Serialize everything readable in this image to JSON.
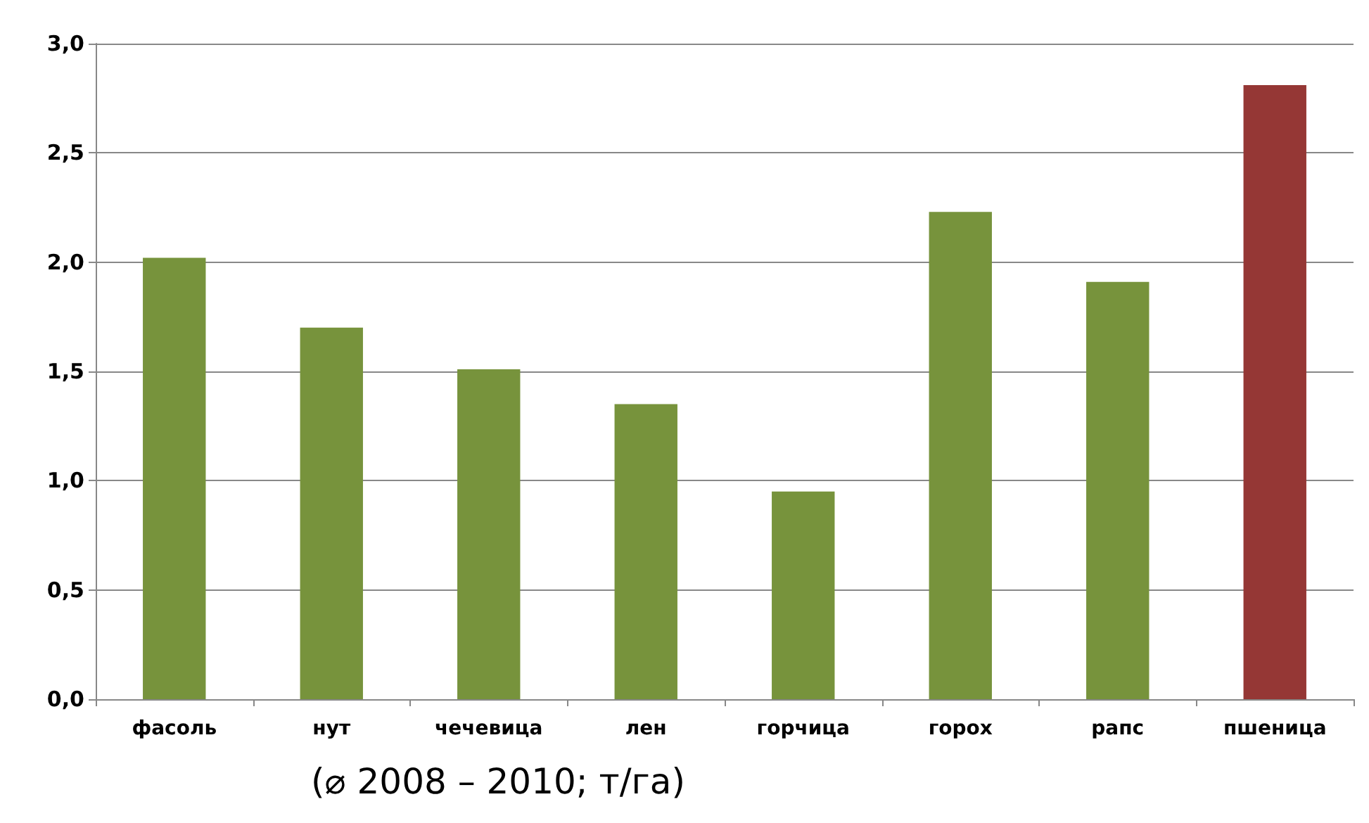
{
  "chart_data": {
    "type": "bar",
    "categories": [
      "фасоль",
      "нут",
      "чечевица",
      "лен",
      "горчица",
      "горох",
      "рапс",
      "пшеница"
    ],
    "values": [
      2.02,
      1.7,
      1.51,
      1.35,
      0.95,
      2.23,
      1.91,
      2.81
    ],
    "colors": [
      "#77933c",
      "#77933c",
      "#77933c",
      "#77933c",
      "#77933c",
      "#77933c",
      "#77933c",
      "#953735"
    ],
    "ylim": [
      0,
      3
    ],
    "yticks": [
      {
        "value": 0,
        "label": "0,0"
      },
      {
        "value": 0.5,
        "label": "0,5"
      },
      {
        "value": 1,
        "label": "1,0"
      },
      {
        "value": 1.5,
        "label": "1,5"
      },
      {
        "value": 2,
        "label": "2,0"
      },
      {
        "value": 2.5,
        "label": "2,5"
      },
      {
        "value": 3,
        "label": "3,0"
      }
    ],
    "grid": "y",
    "annotations": [
      "(⌀ 2008 – 2010; т/га)"
    ]
  }
}
